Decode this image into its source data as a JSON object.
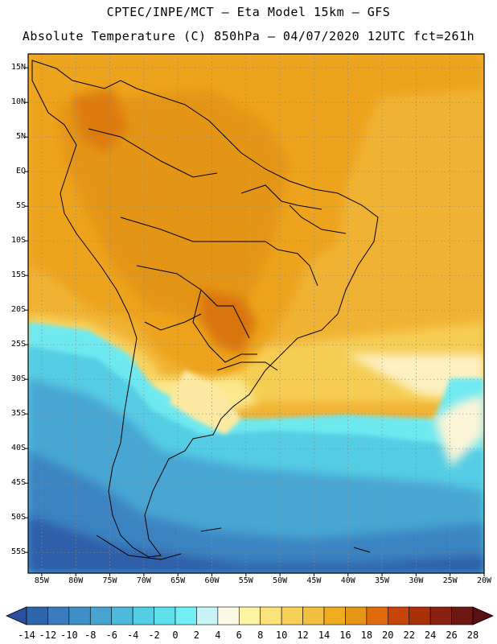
{
  "header": {
    "line1": "CPTEC/INPE/MCT –  Eta Model 15km – GFS",
    "line2": "Absolute Temperature (C) 850hPa – 04/07/2020 12UTC fct=261h"
  },
  "map": {
    "lat_labels": [
      "15N",
      "10N",
      "5N",
      "EQ",
      "5S",
      "10S",
      "15S",
      "20S",
      "25S",
      "30S",
      "35S",
      "40S",
      "45S",
      "50S",
      "55S"
    ],
    "lon_labels": [
      "85W",
      "80W",
      "75W",
      "70W",
      "65W",
      "60W",
      "55W",
      "50W",
      "45W",
      "40W",
      "35W",
      "30W",
      "25W",
      "20W"
    ],
    "frame_color": "#000000",
    "grid_color": "#8a8a8a"
  },
  "colorbar": {
    "labels": [
      "-14",
      "-12",
      "-10",
      "-8",
      "-6",
      "-4",
      "-2",
      "0",
      "2",
      "4",
      "6",
      "8",
      "10",
      "12",
      "14",
      "16",
      "18",
      "20",
      "22",
      "24",
      "26",
      "28"
    ],
    "colors": [
      "#2a4fa0",
      "#2f65ad",
      "#3a7bbd",
      "#3f8fc6",
      "#47a4d1",
      "#4db9dc",
      "#54cde5",
      "#5fdeec",
      "#73eef3",
      "#c9f4f7",
      "#fdf8e4",
      "#fef3a3",
      "#fde27a",
      "#f8d058",
      "#f3bf3e",
      "#efac1f",
      "#e79516",
      "#e06b0d",
      "#c8450a",
      "#a93009",
      "#8a2011",
      "#6d1712",
      "#5a0f13"
    ]
  }
}
